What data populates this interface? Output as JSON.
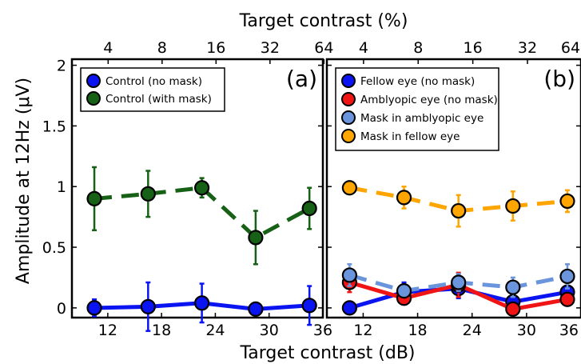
{
  "figure": {
    "top_axis_title": "Target contrast (%)",
    "bottom_axis_title": "Target contrast (dB)",
    "y_axis_title": "Amplitude at 12Hz (μV)"
  },
  "chart_data": [
    {
      "type": "line",
      "panel_label": "(a)",
      "xlabel": "Target contrast (dB)",
      "x2label": "Target contrast (%)",
      "ylabel": "Amplitude at 12Hz (μV)",
      "xlim": [
        8,
        36
      ],
      "ylim": [
        -0.08,
        2.05
      ],
      "x_ticks": [
        12,
        18,
        24,
        30,
        36
      ],
      "x_tick_labels": [
        "12",
        "18",
        "24",
        "30",
        "36"
      ],
      "x2_ticks": [
        12.04,
        18.06,
        24.08,
        30.1,
        36.12
      ],
      "x2_tick_labels": [
        "4",
        "8",
        "16",
        "32",
        "64"
      ],
      "y_ticks": [
        0,
        0.5,
        1,
        1.5,
        2
      ],
      "y_tick_labels": [
        "0",
        "0.5",
        "1",
        "1.5",
        "2"
      ],
      "grid": false,
      "legend_position": "top-left",
      "series": [
        {
          "name": "Control (no mask)",
          "color": "#0a14f0",
          "line_style": "solid",
          "x": [
            10.5,
            16.5,
            22.5,
            28.5,
            34.5
          ],
          "y": [
            0.0,
            0.01,
            0.04,
            -0.01,
            0.02
          ],
          "error": [
            0.07,
            0.2,
            0.16,
            0.01,
            0.16
          ]
        },
        {
          "name": "Control (with mask)",
          "color": "#176117",
          "line_style": "dashed",
          "x": [
            10.5,
            16.5,
            22.5,
            28.5,
            34.5
          ],
          "y": [
            0.9,
            0.94,
            0.99,
            0.58,
            0.82
          ],
          "error": [
            0.26,
            0.19,
            0.08,
            0.22,
            0.17
          ]
        }
      ]
    },
    {
      "type": "line",
      "panel_label": "(b)",
      "xlabel": "Target contrast (dB)",
      "x2label": "Target contrast (%)",
      "ylabel": "Amplitude at 12Hz (μV)",
      "xlim": [
        8,
        36
      ],
      "ylim": [
        -0.08,
        2.05
      ],
      "x_ticks": [
        12,
        18,
        24,
        30,
        36
      ],
      "x_tick_labels": [
        "12",
        "18",
        "24",
        "30",
        "36"
      ],
      "x2_ticks": [
        12.04,
        18.06,
        24.08,
        30.1,
        36.12
      ],
      "x2_tick_labels": [
        "4",
        "8",
        "16",
        "32",
        "64"
      ],
      "y_ticks": [
        0,
        0.5,
        1,
        1.5,
        2
      ],
      "grid": false,
      "legend_position": "top-left",
      "series": [
        {
          "name": "Fellow eye (no mask)",
          "color": "#0a14f0",
          "line_style": "solid",
          "x": [
            10.5,
            16.5,
            22.5,
            28.5,
            34.5
          ],
          "y": [
            0.0,
            0.13,
            0.16,
            0.05,
            0.13
          ],
          "error": [
            0.02,
            0.08,
            0.08,
            0.03,
            0.05
          ]
        },
        {
          "name": "Amblyopic eye (no mask)",
          "color": "#f01414",
          "line_style": "solid",
          "x": [
            10.5,
            16.5,
            22.5,
            28.5,
            34.5
          ],
          "y": [
            0.21,
            0.08,
            0.19,
            -0.01,
            0.07
          ],
          "error": [
            0.08,
            0.04,
            0.1,
            0.04,
            0.04
          ]
        },
        {
          "name": "Mask in amblyopic eye",
          "color": "#6a95dc",
          "line_style": "dashed",
          "x": [
            10.5,
            16.5,
            22.5,
            28.5,
            34.5
          ],
          "y": [
            0.27,
            0.14,
            0.21,
            0.17,
            0.26
          ],
          "error": [
            0.09,
            0.05,
            0.07,
            0.08,
            0.1
          ]
        },
        {
          "name": "Mask in fellow eye",
          "color": "#ffa500",
          "line_style": "dashed",
          "x": [
            10.5,
            16.5,
            22.5,
            28.5,
            34.5
          ],
          "y": [
            0.99,
            0.91,
            0.8,
            0.84,
            0.88
          ],
          "error": [
            0.02,
            0.09,
            0.13,
            0.12,
            0.09
          ]
        }
      ]
    }
  ]
}
